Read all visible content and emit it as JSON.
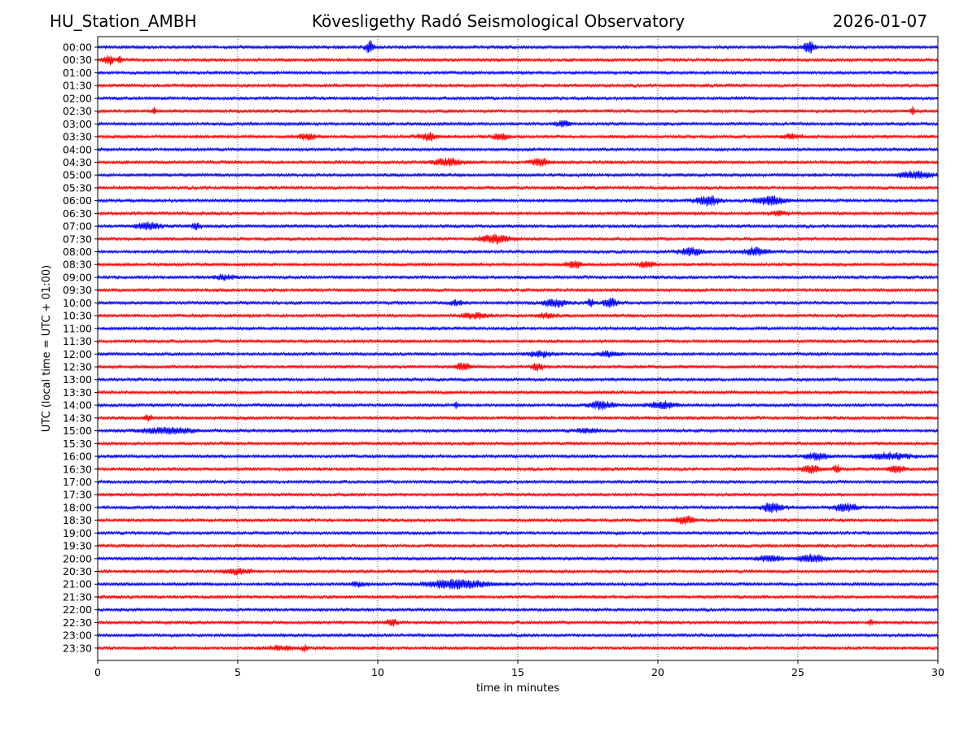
{
  "header": {
    "station": "HU_Station_AMBH",
    "title": "Kövesligethy Radó Seismological Observatory",
    "date": "2026-01-07"
  },
  "chart_data": {
    "type": "line",
    "chart_kind": "helicorder (seismogram drum plot)",
    "xlabel": "time in minutes",
    "ylabel": "UTC (local time = UTC + 01:00)",
    "xlim": [
      0,
      30
    ],
    "x_ticks": [
      "0",
      "5",
      "10",
      "15",
      "20",
      "25",
      "30"
    ],
    "x_tick_values": [
      0,
      5,
      10,
      15,
      20,
      25,
      30
    ],
    "vertical_grid": "dotted at each x tick",
    "row_labels": [
      "00:00",
      "00:30",
      "01:00",
      "01:30",
      "02:00",
      "02:30",
      "03:00",
      "03:30",
      "04:00",
      "04:30",
      "05:00",
      "05:30",
      "06:00",
      "06:30",
      "07:00",
      "07:30",
      "08:00",
      "08:30",
      "09:00",
      "09:30",
      "10:00",
      "10:30",
      "11:00",
      "11:30",
      "12:00",
      "12:30",
      "13:00",
      "13:30",
      "14:00",
      "14:30",
      "15:00",
      "15:30",
      "16:00",
      "16:30",
      "17:00",
      "17:30",
      "18:00",
      "18:30",
      "19:00",
      "19:30",
      "20:00",
      "20:30",
      "21:00",
      "21:30",
      "22:00",
      "22:30",
      "23:00",
      "23:30"
    ],
    "trace_colors": [
      "#0000ff",
      "#ff0000"
    ],
    "color_rule": "rows alternate blue (full hours) and red (half hours)",
    "noise_level": 0.25,
    "bursts": [
      {
        "row": "00:00",
        "minute": 9.7,
        "amplitude": 1.0,
        "duration_min": 0.25
      },
      {
        "row": "00:00",
        "minute": 25.4,
        "amplitude": 1.0,
        "duration_min": 0.35
      },
      {
        "row": "00:30",
        "minute": 0.4,
        "amplitude": 0.8,
        "duration_min": 0.3
      },
      {
        "row": "00:30",
        "minute": 0.8,
        "amplitude": 0.6,
        "duration_min": 0.1
      },
      {
        "row": "02:30",
        "minute": 2.0,
        "amplitude": 0.55,
        "duration_min": 0.1
      },
      {
        "row": "02:30",
        "minute": 29.1,
        "amplitude": 0.7,
        "duration_min": 0.1
      },
      {
        "row": "03:00",
        "minute": 16.6,
        "amplitude": 0.45,
        "duration_min": 0.5
      },
      {
        "row": "03:30",
        "minute": 7.5,
        "amplitude": 0.45,
        "duration_min": 0.6
      },
      {
        "row": "03:30",
        "minute": 11.8,
        "amplitude": 0.55,
        "duration_min": 0.7
      },
      {
        "row": "03:30",
        "minute": 14.4,
        "amplitude": 0.45,
        "duration_min": 0.5
      },
      {
        "row": "03:30",
        "minute": 24.8,
        "amplitude": 0.35,
        "duration_min": 0.6
      },
      {
        "row": "04:30",
        "minute": 12.5,
        "amplitude": 0.55,
        "duration_min": 1.0
      },
      {
        "row": "04:30",
        "minute": 15.8,
        "amplitude": 0.55,
        "duration_min": 0.6
      },
      {
        "row": "05:00",
        "minute": 29.2,
        "amplitude": 0.5,
        "duration_min": 1.3
      },
      {
        "row": "06:00",
        "minute": 21.8,
        "amplitude": 0.75,
        "duration_min": 0.8
      },
      {
        "row": "06:00",
        "minute": 24.0,
        "amplitude": 0.65,
        "duration_min": 1.0
      },
      {
        "row": "06:30",
        "minute": 24.3,
        "amplitude": 0.35,
        "duration_min": 0.5
      },
      {
        "row": "07:00",
        "minute": 1.8,
        "amplitude": 0.6,
        "duration_min": 0.8
      },
      {
        "row": "07:00",
        "minute": 3.5,
        "amplitude": 0.55,
        "duration_min": 0.3
      },
      {
        "row": "07:30",
        "minute": 14.2,
        "amplitude": 0.6,
        "duration_min": 1.1
      },
      {
        "row": "08:00",
        "minute": 21.2,
        "amplitude": 0.6,
        "duration_min": 0.8
      },
      {
        "row": "08:00",
        "minute": 23.5,
        "amplitude": 0.6,
        "duration_min": 0.8
      },
      {
        "row": "08:30",
        "minute": 17.0,
        "amplitude": 0.55,
        "duration_min": 0.5
      },
      {
        "row": "08:30",
        "minute": 19.6,
        "amplitude": 0.5,
        "duration_min": 0.5
      },
      {
        "row": "09:00",
        "minute": 4.5,
        "amplitude": 0.3,
        "duration_min": 0.8
      },
      {
        "row": "10:00",
        "minute": 16.3,
        "amplitude": 0.55,
        "duration_min": 0.9
      },
      {
        "row": "10:00",
        "minute": 17.6,
        "amplitude": 0.7,
        "duration_min": 0.2
      },
      {
        "row": "10:00",
        "minute": 18.3,
        "amplitude": 0.65,
        "duration_min": 0.5
      },
      {
        "row": "10:00",
        "minute": 12.8,
        "amplitude": 0.4,
        "duration_min": 0.5
      },
      {
        "row": "10:30",
        "minute": 13.5,
        "amplitude": 0.4,
        "duration_min": 1.0
      },
      {
        "row": "10:30",
        "minute": 16.0,
        "amplitude": 0.4,
        "duration_min": 0.6
      },
      {
        "row": "12:00",
        "minute": 15.8,
        "amplitude": 0.45,
        "duration_min": 0.8
      },
      {
        "row": "12:00",
        "minute": 18.2,
        "amplitude": 0.35,
        "duration_min": 0.8
      },
      {
        "row": "12:30",
        "minute": 13.0,
        "amplitude": 0.55,
        "duration_min": 0.5
      },
      {
        "row": "12:30",
        "minute": 15.7,
        "amplitude": 0.5,
        "duration_min": 0.4
      },
      {
        "row": "14:00",
        "minute": 12.8,
        "amplitude": 0.6,
        "duration_min": 0.1
      },
      {
        "row": "14:00",
        "minute": 18.0,
        "amplitude": 0.6,
        "duration_min": 0.9
      },
      {
        "row": "14:00",
        "minute": 20.2,
        "amplitude": 0.55,
        "duration_min": 0.9
      },
      {
        "row": "14:30",
        "minute": 1.8,
        "amplitude": 0.45,
        "duration_min": 0.3
      },
      {
        "row": "15:00",
        "minute": 2.5,
        "amplitude": 0.5,
        "duration_min": 1.8
      },
      {
        "row": "15:00",
        "minute": 17.5,
        "amplitude": 0.35,
        "duration_min": 0.8
      },
      {
        "row": "16:00",
        "minute": 25.7,
        "amplitude": 0.55,
        "duration_min": 0.8
      },
      {
        "row": "16:00",
        "minute": 28.3,
        "amplitude": 0.5,
        "duration_min": 1.5
      },
      {
        "row": "16:30",
        "minute": 25.5,
        "amplitude": 0.6,
        "duration_min": 0.7
      },
      {
        "row": "16:30",
        "minute": 26.4,
        "amplitude": 0.5,
        "duration_min": 0.3
      },
      {
        "row": "16:30",
        "minute": 28.5,
        "amplitude": 0.5,
        "duration_min": 0.6
      },
      {
        "row": "18:00",
        "minute": 24.1,
        "amplitude": 0.75,
        "duration_min": 0.7
      },
      {
        "row": "18:00",
        "minute": 26.7,
        "amplitude": 0.6,
        "duration_min": 0.8
      },
      {
        "row": "18:30",
        "minute": 21.0,
        "amplitude": 0.55,
        "duration_min": 0.7
      },
      {
        "row": "20:00",
        "minute": 24.0,
        "amplitude": 0.5,
        "duration_min": 0.8
      },
      {
        "row": "20:00",
        "minute": 25.5,
        "amplitude": 0.55,
        "duration_min": 1.0
      },
      {
        "row": "20:30",
        "minute": 5.0,
        "amplitude": 0.4,
        "duration_min": 1.0
      },
      {
        "row": "21:00",
        "minute": 12.8,
        "amplitude": 0.7,
        "duration_min": 2.2
      },
      {
        "row": "21:00",
        "minute": 9.3,
        "amplitude": 0.3,
        "duration_min": 0.6
      },
      {
        "row": "22:30",
        "minute": 10.5,
        "amplitude": 0.5,
        "duration_min": 0.3
      },
      {
        "row": "22:30",
        "minute": 27.6,
        "amplitude": 0.45,
        "duration_min": 0.15
      },
      {
        "row": "23:30",
        "minute": 7.4,
        "amplitude": 0.5,
        "duration_min": 0.15
      },
      {
        "row": "23:30",
        "minute": 6.5,
        "amplitude": 0.3,
        "duration_min": 1.0
      }
    ]
  }
}
